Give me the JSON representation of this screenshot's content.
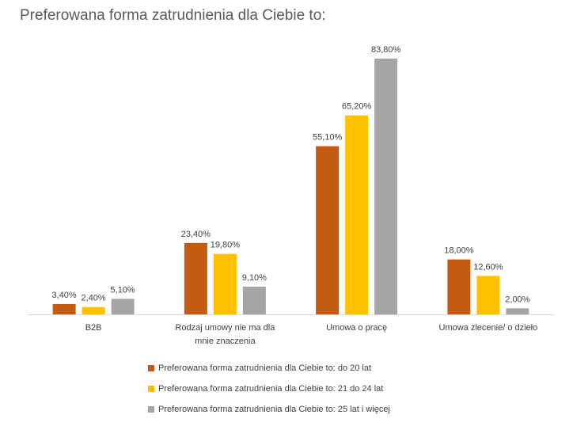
{
  "chart_data": {
    "type": "bar",
    "title": "Preferowana forma zatrudnienia dla Ciebie to:",
    "categories": [
      [
        "B2B"
      ],
      [
        "Rodzaj umowy nie ma dla",
        "mnie znaczenia"
      ],
      [
        "Umowa o pracę"
      ],
      [
        "Umowa zlecenie/ o dzieło"
      ]
    ],
    "series": [
      {
        "name": "Preferowana forma zatrudnienia dla Ciebie to: do 20 lat",
        "color": "#c55a11",
        "values": [
          3.4,
          23.4,
          55.1,
          18.0
        ],
        "labels": [
          "3,40%",
          "23,40%",
          "55,10%",
          "18,00%"
        ]
      },
      {
        "name": "Preferowana forma zatrudnienia dla Ciebie to: 21 do 24 lat",
        "color": "#ffc000",
        "values": [
          2.4,
          19.8,
          65.2,
          12.6
        ],
        "labels": [
          "2,40%",
          "19,80%",
          "65,20%",
          "12,60%"
        ]
      },
      {
        "name": "Preferowana forma zatrudnienia dla Ciebie to: 25 lat i więcej",
        "color": "#a5a5a5",
        "values": [
          5.1,
          9.1,
          83.8,
          2.0
        ],
        "labels": [
          "5,10%",
          "9,10%",
          "83,80%",
          "2,00%"
        ]
      }
    ],
    "ylim": [
      0,
      85
    ],
    "grid": false,
    "legend_position": "bottom",
    "xlabel": "",
    "ylabel": ""
  }
}
